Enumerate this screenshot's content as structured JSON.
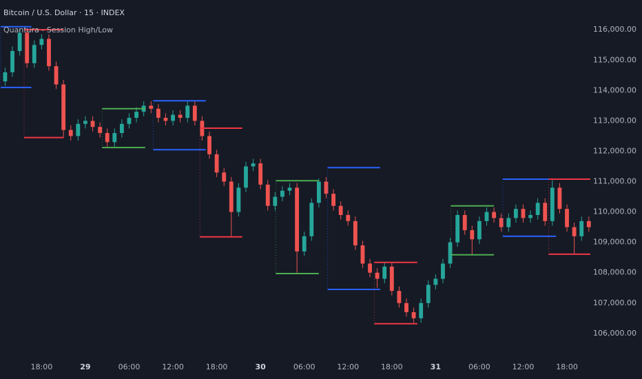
{
  "chart_data": {
    "type": "candlestick",
    "title": "Bitcoin / U.S. Dollar · 15 · INDEX",
    "subtitle": "Quantura - Session High/Low",
    "up_color": "#26a69a",
    "down_color": "#ef5350",
    "grid": false,
    "x": [
      13,
      14,
      15,
      16,
      17,
      18,
      19,
      20,
      21,
      22,
      23,
      24,
      25,
      26,
      27,
      28,
      29,
      30,
      31,
      32,
      33,
      34,
      35,
      36,
      37,
      38,
      39,
      40,
      41,
      42,
      43,
      44,
      45,
      46,
      47,
      48,
      49,
      50,
      51,
      52,
      53,
      54,
      55,
      56,
      57,
      58,
      59,
      60,
      61,
      62,
      63,
      64,
      65,
      66,
      67,
      68,
      69,
      70,
      71,
      72,
      73,
      74,
      75,
      76,
      77,
      78,
      79,
      80,
      81,
      82,
      83,
      84,
      85,
      86,
      87,
      88,
      89,
      90,
      91,
      92,
      93
    ],
    "open": [
      114300,
      114600,
      115300,
      115900,
      114900,
      115500,
      115700,
      114800,
      114200,
      112700,
      112500,
      112900,
      113000,
      112800,
      112600,
      112300,
      112600,
      112900,
      113100,
      113300,
      113500,
      113400,
      113100,
      113000,
      113200,
      113100,
      113500,
      113000,
      112500,
      111900,
      111300,
      111000,
      110000,
      110800,
      111500,
      111600,
      110900,
      110200,
      110500,
      110700,
      110800,
      108700,
      109200,
      110300,
      111000,
      110600,
      110200,
      109900,
      109700,
      108900,
      108300,
      108000,
      107800,
      108200,
      107400,
      107000,
      106700,
      106500,
      107000,
      107600,
      107800,
      108300,
      109000,
      109900,
      109400,
      109100,
      109700,
      110000,
      109800,
      109500,
      109800,
      110100,
      109800,
      109900,
      110300,
      109700,
      110800,
      110100,
      109500,
      109200,
      109700
    ],
    "high": [
      114750,
      115450,
      116050,
      116000,
      115650,
      115850,
      115850,
      114950,
      114350,
      112850,
      113050,
      113150,
      113150,
      112950,
      112750,
      112750,
      113050,
      113250,
      113450,
      113650,
      113650,
      113550,
      113250,
      113350,
      113350,
      113650,
      113650,
      113150,
      112650,
      112050,
      111450,
      111150,
      110950,
      111650,
      111750,
      111750,
      111050,
      110650,
      110850,
      110950,
      110950,
      109350,
      110450,
      111100,
      111150,
      110750,
      110350,
      110050,
      109850,
      109050,
      108450,
      108150,
      108350,
      108350,
      107550,
      107150,
      106850,
      107150,
      107750,
      107950,
      108450,
      109150,
      110050,
      110050,
      109550,
      109850,
      110150,
      110150,
      109950,
      109950,
      110250,
      110250,
      110050,
      110450,
      110450,
      111050,
      110950,
      110250,
      109650,
      109850,
      109850
    ],
    "low": [
      114150,
      114450,
      115150,
      114750,
      114750,
      115350,
      114650,
      114050,
      112450,
      112350,
      112350,
      112750,
      112650,
      112450,
      112150,
      112150,
      112450,
      112750,
      112950,
      113150,
      113250,
      112950,
      112850,
      112850,
      112950,
      112950,
      112850,
      112350,
      111750,
      111150,
      110850,
      109200,
      109850,
      110650,
      111350,
      110750,
      110050,
      110050,
      110350,
      110550,
      108000,
      108550,
      109050,
      110150,
      110450,
      110050,
      109750,
      109550,
      108750,
      108150,
      107850,
      107500,
      107650,
      107250,
      106850,
      106550,
      106350,
      106350,
      106850,
      107450,
      107650,
      108150,
      108850,
      109250,
      108600,
      108950,
      109550,
      109650,
      109350,
      109350,
      109650,
      109650,
      109650,
      109750,
      109550,
      109550,
      109950,
      109350,
      108600,
      109050,
      109350
    ],
    "close": [
      114600,
      115300,
      115900,
      114900,
      115500,
      115700,
      114800,
      114200,
      112700,
      112500,
      112900,
      113000,
      112800,
      112600,
      112300,
      112600,
      112900,
      113100,
      113300,
      113500,
      113400,
      113100,
      113000,
      113200,
      113100,
      113500,
      113000,
      112500,
      111900,
      111300,
      111000,
      110000,
      110800,
      111500,
      111600,
      110900,
      110200,
      110500,
      110700,
      110800,
      108700,
      109200,
      110300,
      111000,
      110600,
      110200,
      109900,
      109700,
      108900,
      108300,
      108000,
      107800,
      108200,
      107400,
      107000,
      106700,
      106500,
      107000,
      107600,
      107800,
      108300,
      109000,
      109900,
      109400,
      109100,
      109700,
      110000,
      109800,
      109500,
      109800,
      110100,
      109800,
      109900,
      110300,
      109700,
      110800,
      110100,
      109500,
      109200,
      109700,
      109500
    ],
    "sessions": [
      {
        "color": "#2962ff",
        "start": 12.4,
        "end": 16.6,
        "high": 116100,
        "low": 114100
      },
      {
        "color": "#f23645",
        "start": 15.6,
        "end": 21.0,
        "high": 116000,
        "low": 112450
      },
      {
        "color": "#4caf50",
        "start": 26.3,
        "end": 32.2,
        "high": 113400,
        "low": 112120
      },
      {
        "color": "#2962ff",
        "start": 33.3,
        "end": 40.5,
        "high": 113660,
        "low": 112050
      },
      {
        "color": "#f23645",
        "start": 39.7,
        "end": 45.5,
        "high": 112760,
        "low": 109180
      },
      {
        "color": "#4caf50",
        "start": 50.1,
        "end": 56.0,
        "high": 111030,
        "low": 107970
      },
      {
        "color": "#2962ff",
        "start": 57.2,
        "end": 64.4,
        "high": 111460,
        "low": 107450
      },
      {
        "color": "#f23645",
        "start": 63.6,
        "end": 69.5,
        "high": 108340,
        "low": 106320
      },
      {
        "color": "#4caf50",
        "start": 74.1,
        "end": 80.0,
        "high": 110200,
        "low": 108590
      },
      {
        "color": "#2962ff",
        "start": 81.2,
        "end": 88.5,
        "high": 111080,
        "low": 109200
      },
      {
        "color": "#f23645",
        "start": 87.5,
        "end": 93.2,
        "high": 111080,
        "low": 108610
      }
    ],
    "xlim": [
      12.3,
      93.3
    ],
    "ylim": [
      105180,
      116980
    ],
    "xticks": [
      {
        "value": 18,
        "label": "18:00"
      },
      {
        "value": 24,
        "label": "29"
      },
      {
        "value": 30,
        "label": "06:00"
      },
      {
        "value": 36,
        "label": "12:00"
      },
      {
        "value": 42,
        "label": "18:00"
      },
      {
        "value": 48,
        "label": "30"
      },
      {
        "value": 54,
        "label": "06:00"
      },
      {
        "value": 60,
        "label": "12:00"
      },
      {
        "value": 66,
        "label": "18:00"
      },
      {
        "value": 72,
        "label": "31"
      },
      {
        "value": 78,
        "label": "06:00"
      },
      {
        "value": 84,
        "label": "12:00"
      },
      {
        "value": 90,
        "label": "18:00"
      }
    ],
    "yticks": [
      {
        "value": 106000,
        "label": "106,000.00"
      },
      {
        "value": 107000,
        "label": "107,000.00"
      },
      {
        "value": 108000,
        "label": "108,000.00"
      },
      {
        "value": 109000,
        "label": "109,000.00"
      },
      {
        "value": 110000,
        "label": "110,000.00"
      },
      {
        "value": 111000,
        "label": "111,000.00"
      },
      {
        "value": 112000,
        "label": "112,000.00"
      },
      {
        "value": 113000,
        "label": "113,000.00"
      },
      {
        "value": 114000,
        "label": "114,000.00"
      },
      {
        "value": 115000,
        "label": "115,000.00"
      },
      {
        "value": 116000,
        "label": "116,000.00"
      }
    ]
  }
}
